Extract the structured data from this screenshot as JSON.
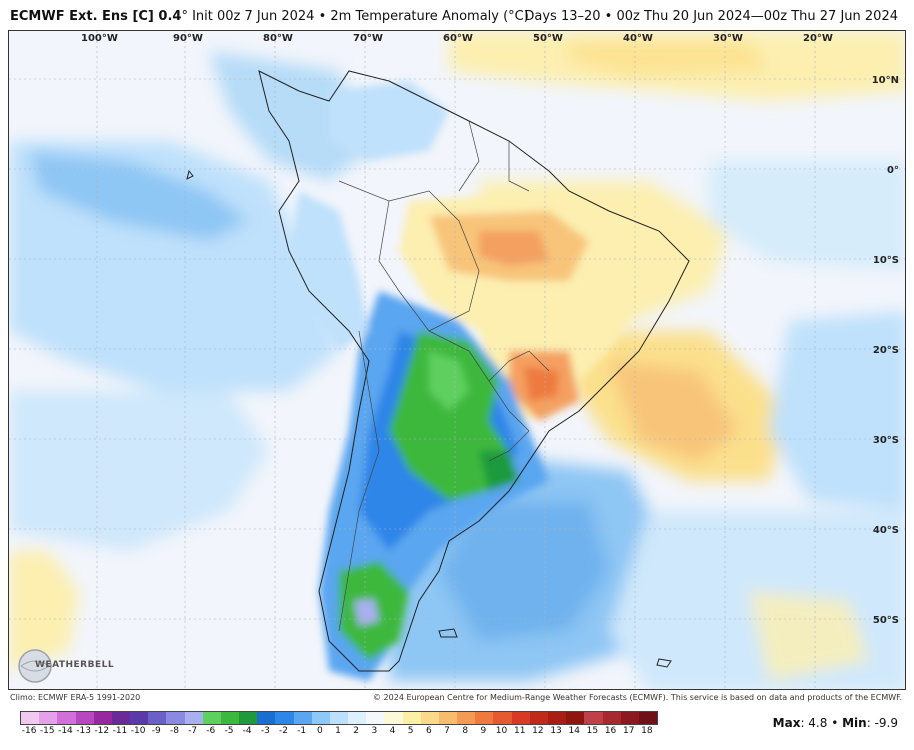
{
  "header": {
    "model": "ECMWF Ext. Ens [C] 0.4",
    "model_degree": "°",
    "init": "Init 00z 7 Jun 2024",
    "sep": "•",
    "field": "2m Temperature Anomaly (°C)",
    "valid": "Days 13–20 • 00z Thu 20 Jun 2024—00z Thu 27 Jun 2024"
  },
  "map": {
    "lon_labels": [
      "100°W",
      "90°W",
      "80°W",
      "70°W",
      "60°W",
      "50°W",
      "40°W",
      "30°W",
      "20°W"
    ],
    "lat_labels": [
      "10°N",
      "0°",
      "10°S",
      "20°S",
      "30°S",
      "40°S",
      "50°S"
    ]
  },
  "logo": {
    "text": "WEATHERBELL"
  },
  "footer": {
    "climo": "Climo: ECMWF ERA-5 1991-2020",
    "copyright": "© 2024 European Centre for Medium-Range Weather Forecasts (ECMWF). This service is based on data and products of the ECMWF."
  },
  "legend": {
    "ticks": [
      "-16",
      "-15",
      "-14",
      "-13",
      "-12",
      "-11",
      "-10",
      "-9",
      "-8",
      "-7",
      "-6",
      "-5",
      "-4",
      "-3",
      "-2",
      "-1",
      "0",
      "1",
      "2",
      "3",
      "4",
      "5",
      "6",
      "7",
      "8",
      "9",
      "10",
      "11",
      "12",
      "13",
      "14",
      "15",
      "16",
      "17",
      "18"
    ],
    "colors": [
      "#f0c8f0",
      "#e4a0e8",
      "#d070d8",
      "#b848c0",
      "#9828a0",
      "#6a2a9a",
      "#5a3aaa",
      "#6a60c8",
      "#8a8ae0",
      "#a8b0f0",
      "#5fd05f",
      "#3cb83c",
      "#1e9a3c",
      "#1a6ed0",
      "#2e86e8",
      "#5aa6f0",
      "#8cc8f8",
      "#bce0fc",
      "#dcf0ff",
      "#f4f8fc",
      "#fdf8d8",
      "#fcefa6",
      "#fbd98a",
      "#f8bc6e",
      "#f49a52",
      "#ee7a40",
      "#e65a30",
      "#d83a24",
      "#c02a1a",
      "#a81e14",
      "#8e160e",
      "#c0404a",
      "#a82830",
      "#8e1820",
      "#701018"
    ],
    "max_label": "Max",
    "max_value": "4.8",
    "min_label": "Min",
    "min_value": "-9.9"
  }
}
